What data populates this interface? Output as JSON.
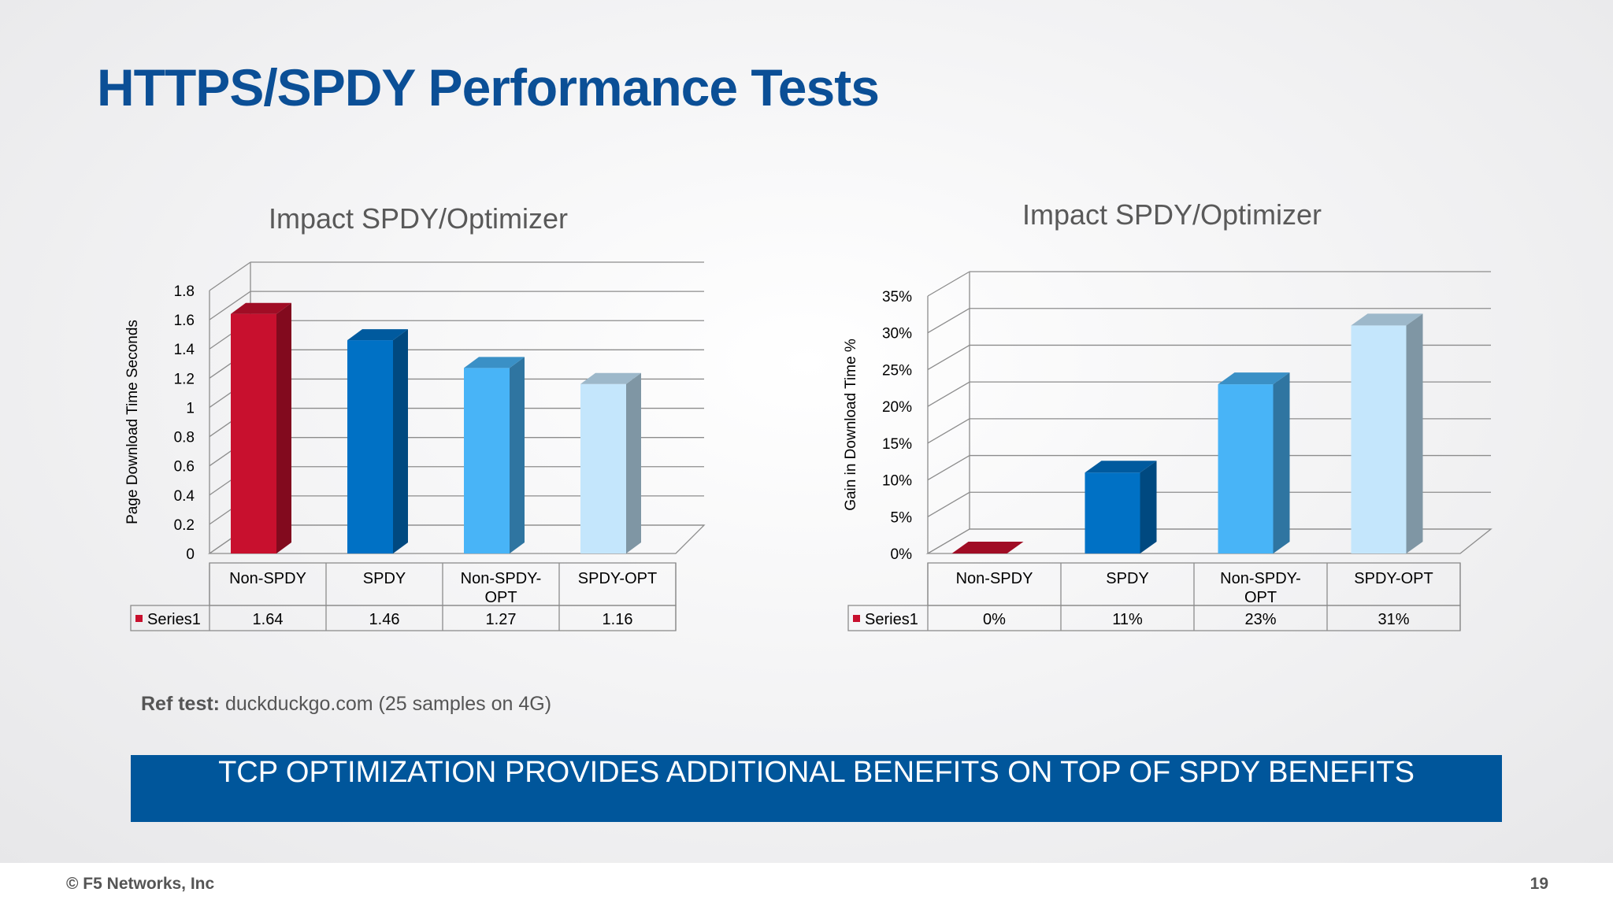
{
  "slide": {
    "title": "HTTPS/SPDY Performance Tests",
    "ref_label": "Ref test:",
    "ref_text": "duckduckgo.com (25 samples on 4G)",
    "banner": "TCP OPTIMIZATION PROVIDES ADDITIONAL BENEFITS ON TOP OF SPDY BENEFITS",
    "footer_left": "© F5 Networks, Inc",
    "page_number": "19"
  },
  "chart_data": [
    {
      "type": "bar",
      "title": "Impact SPDY/Optimizer",
      "ylabel": "Page Download Time Seconds",
      "categories": [
        "Non-SPDY",
        "SPDY",
        "Non-SPDY-OPT",
        "SPDY-OPT"
      ],
      "series": [
        {
          "name": "Series1",
          "values": [
            1.64,
            1.46,
            1.27,
            1.16
          ]
        }
      ],
      "table_values": [
        "1.64",
        "1.46",
        "1.27",
        "1.16"
      ],
      "ylim": [
        0,
        1.8
      ],
      "yticks": [
        "0",
        "0.2",
        "0.4",
        "0.6",
        "0.8",
        "1",
        "1.2",
        "1.4",
        "1.6",
        "1.8"
      ],
      "bar_colors": [
        "#c8102e",
        "#0071c5",
        "#48b4f7",
        "#c4e6fc"
      ],
      "grid": true,
      "legend": "data table"
    },
    {
      "type": "bar",
      "title": "Impact SPDY/Optimizer",
      "ylabel": "Gain in Download Time %",
      "categories": [
        "Non-SPDY",
        "SPDY",
        "Non-SPDY-OPT",
        "SPDY-OPT"
      ],
      "series": [
        {
          "name": "Series1",
          "values": [
            0,
            11,
            23,
            31
          ]
        }
      ],
      "table_values": [
        "0%",
        "11%",
        "23%",
        "31%"
      ],
      "ylim": [
        0,
        35
      ],
      "yticks": [
        "0%",
        "5%",
        "10%",
        "15%",
        "20%",
        "25%",
        "30%",
        "35%"
      ],
      "bar_colors": [
        "#c8102e",
        "#0071c5",
        "#48b4f7",
        "#c4e6fc"
      ],
      "grid": true,
      "legend": "data table"
    }
  ]
}
